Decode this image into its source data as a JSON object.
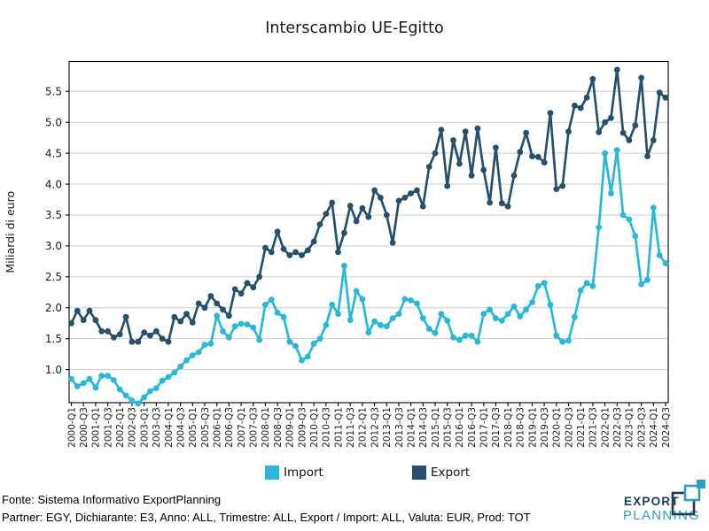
{
  "title": "Interscambio UE-Egitto",
  "legend": {
    "import_label": "Import",
    "export_label": "Export"
  },
  "footer": {
    "line1": "Fonte: Sistema Informativo ExportPlanning",
    "line2": "Partner: EGY, Dichiarante: E3, Anno: ALL, Trimestre: ALL, Export / Import: ALL, Valuta: EUR, Prod: TOT"
  },
  "logo": {
    "line1": "EXPORT",
    "line2": "PLANNING",
    "navy": "#1d3b55",
    "teal": "#2e9ec2"
  },
  "colors": {
    "import": "#29b8d8",
    "export": "#26506b",
    "grid": "#cccccc",
    "axis": "#000000",
    "text": "#1a1a1a"
  },
  "chart_data": {
    "type": "line",
    "title": "Interscambio UE-Egitto",
    "xlabel": "",
    "ylabel": "Miliardi di euro",
    "ylim": [
      0.55,
      5.92
    ],
    "yticks": [
      1.0,
      1.5,
      2.0,
      2.5,
      3.0,
      3.5,
      4.0,
      4.5,
      5.0,
      5.5
    ],
    "grid": "horizontal",
    "legend_position": "bottom",
    "x_tick_step": 2,
    "x": [
      "2000-Q1",
      "2000-Q2",
      "2000-Q3",
      "2000-Q4",
      "2001-Q1",
      "2001-Q2",
      "2001-Q3",
      "2001-Q4",
      "2002-Q1",
      "2002-Q2",
      "2002-Q3",
      "2002-Q4",
      "2003-Q1",
      "2003-Q2",
      "2003-Q3",
      "2003-Q4",
      "2004-Q1",
      "2004-Q2",
      "2004-Q3",
      "2004-Q4",
      "2005-Q1",
      "2005-Q2",
      "2005-Q3",
      "2005-Q4",
      "2006-Q1",
      "2006-Q2",
      "2006-Q3",
      "2006-Q4",
      "2007-Q1",
      "2007-Q2",
      "2007-Q3",
      "2007-Q4",
      "2008-Q1",
      "2008-Q2",
      "2008-Q3",
      "2008-Q4",
      "2009-Q1",
      "2009-Q2",
      "2009-Q3",
      "2009-Q4",
      "2010-Q1",
      "2010-Q2",
      "2010-Q3",
      "2010-Q4",
      "2011-Q1",
      "2011-Q2",
      "2011-Q3",
      "2011-Q4",
      "2012-Q1",
      "2012-Q2",
      "2012-Q3",
      "2012-Q4",
      "2013-Q1",
      "2013-Q2",
      "2013-Q3",
      "2013-Q4",
      "2014-Q1",
      "2014-Q2",
      "2014-Q3",
      "2014-Q4",
      "2015-Q1",
      "2015-Q2",
      "2015-Q3",
      "2015-Q4",
      "2016-Q1",
      "2016-Q2",
      "2016-Q3",
      "2016-Q4",
      "2017-Q1",
      "2017-Q2",
      "2017-Q3",
      "2017-Q4",
      "2018-Q1",
      "2018-Q2",
      "2018-Q3",
      "2018-Q4",
      "2019-Q1",
      "2019-Q2",
      "2019-Q3",
      "2019-Q4",
      "2020-Q1",
      "2020-Q2",
      "2020-Q3",
      "2020-Q4",
      "2021-Q1",
      "2021-Q2",
      "2021-Q3",
      "2021-Q4",
      "2022-Q1",
      "2022-Q2",
      "2022-Q3",
      "2022-Q4",
      "2023-Q1",
      "2023-Q2",
      "2023-Q3",
      "2023-Q4",
      "2024-Q1",
      "2024-Q2",
      "2024-Q3"
    ],
    "series": [
      {
        "name": "Import",
        "color": "#29b8d8",
        "values": [
          0.85,
          0.73,
          0.78,
          0.85,
          0.71,
          0.9,
          0.9,
          0.83,
          0.68,
          0.58,
          0.5,
          0.45,
          0.55,
          0.65,
          0.7,
          0.82,
          0.88,
          0.95,
          1.05,
          1.15,
          1.23,
          1.28,
          1.4,
          1.42,
          1.87,
          1.62,
          1.52,
          1.7,
          1.74,
          1.73,
          1.68,
          1.48,
          2.05,
          2.13,
          1.92,
          1.85,
          1.45,
          1.38,
          1.15,
          1.21,
          1.42,
          1.5,
          1.72,
          2.05,
          1.9,
          2.68,
          1.8,
          2.27,
          2.14,
          1.6,
          1.78,
          1.72,
          1.7,
          1.83,
          1.9,
          2.14,
          2.12,
          2.07,
          1.83,
          1.66,
          1.59,
          1.9,
          1.79,
          1.52,
          1.48,
          1.55,
          1.55,
          1.45,
          1.9,
          1.97,
          1.83,
          1.79,
          1.9,
          2.02,
          1.86,
          1.97,
          2.09,
          2.35,
          2.4,
          2.05,
          1.55,
          1.45,
          1.47,
          1.85,
          2.28,
          2.4,
          2.35,
          3.3,
          4.5,
          3.85,
          4.55,
          3.5,
          3.43,
          3.16,
          2.38,
          2.45,
          3.62,
          2.85,
          2.72
        ]
      },
      {
        "name": "Export",
        "color": "#26506b",
        "values": [
          1.75,
          1.95,
          1.8,
          1.95,
          1.8,
          1.62,
          1.62,
          1.52,
          1.57,
          1.85,
          1.45,
          1.45,
          1.6,
          1.55,
          1.62,
          1.5,
          1.45,
          1.85,
          1.78,
          1.9,
          1.76,
          2.07,
          2.0,
          2.19,
          2.07,
          1.97,
          1.87,
          2.3,
          2.23,
          2.4,
          2.33,
          2.5,
          2.97,
          2.9,
          3.23,
          2.95,
          2.85,
          2.9,
          2.85,
          2.93,
          3.07,
          3.35,
          3.52,
          3.7,
          2.9,
          3.21,
          3.65,
          3.4,
          3.61,
          3.47,
          3.9,
          3.78,
          3.5,
          3.05,
          3.73,
          3.78,
          3.85,
          3.9,
          3.64,
          4.28,
          4.5,
          4.88,
          3.97,
          4.71,
          4.33,
          4.85,
          4.14,
          4.9,
          4.23,
          3.7,
          4.59,
          3.69,
          3.64,
          4.14,
          4.52,
          4.83,
          4.45,
          4.44,
          4.35,
          5.15,
          3.92,
          3.97,
          4.85,
          5.27,
          5.23,
          5.4,
          5.7,
          4.84,
          5.0,
          5.07,
          5.85,
          4.83,
          4.71,
          4.95,
          5.72,
          4.45,
          4.71,
          5.48,
          5.4
        ]
      }
    ]
  }
}
